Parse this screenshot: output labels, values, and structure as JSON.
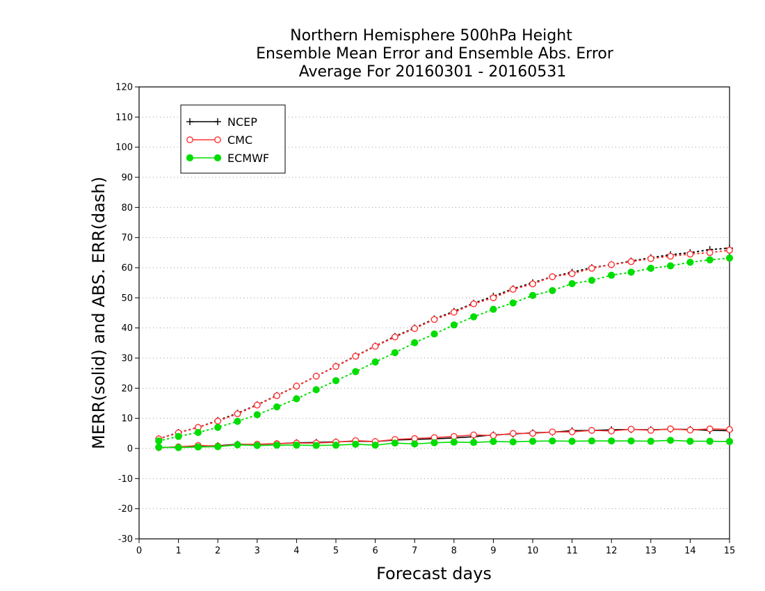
{
  "chart_data": {
    "type": "line",
    "title_lines": [
      "Northern Hemisphere 500hPa Height",
      "Ensemble Mean Error and Ensemble Abs. Error",
      "Average For 20160301 - 20160531"
    ],
    "xlabel": "Forecast days",
    "ylabel": "MERR(solid) and ABS. ERR(dash)",
    "xlim": [
      0,
      15
    ],
    "ylim": [
      -30,
      120
    ],
    "xticks": [
      0,
      1,
      2,
      3,
      4,
      5,
      6,
      7,
      8,
      9,
      10,
      11,
      12,
      13,
      14,
      15
    ],
    "yticks": [
      -30,
      -20,
      -10,
      0,
      10,
      20,
      30,
      40,
      50,
      60,
      70,
      80,
      90,
      100,
      110,
      120
    ],
    "grid": "horizontal dotted",
    "legend_position": "top-left",
    "x": [
      0.5,
      1,
      1.5,
      2,
      2.5,
      3,
      3.5,
      4,
      4.5,
      5,
      5.5,
      6,
      6.5,
      7,
      7.5,
      8,
      8.5,
      9,
      9.5,
      10,
      10.5,
      11,
      11.5,
      12,
      12.5,
      13,
      13.5,
      14,
      14.5,
      15
    ],
    "series": [
      {
        "name": "NCEP",
        "color": "#000000",
        "marker": "plus",
        "merr": [
          0.3,
          0.5,
          0.8,
          0.9,
          1.4,
          1.3,
          1.6,
          1.9,
          2.0,
          2.2,
          2.4,
          2.3,
          2.8,
          3.0,
          3.2,
          3.5,
          3.9,
          4.5,
          4.8,
          5.2,
          5.4,
          5.9,
          6.0,
          6.2,
          6.3,
          6.2,
          6.4,
          6.3,
          6.0,
          5.9
        ],
        "abs_err": [
          3.2,
          5.3,
          7.0,
          9.3,
          11.7,
          14.5,
          17.6,
          20.7,
          24.0,
          27.3,
          30.7,
          34.0,
          37.2,
          40.0,
          43.0,
          45.5,
          48.2,
          50.5,
          53.0,
          55.0,
          57.0,
          58.5,
          60.0,
          61.0,
          62.2,
          63.3,
          64.3,
          65.0,
          66.0,
          66.5
        ]
      },
      {
        "name": "CMC",
        "color": "#ff3333",
        "marker": "open-circle",
        "merr": [
          0.3,
          0.5,
          1.0,
          0.8,
          1.3,
          1.4,
          1.6,
          1.8,
          1.8,
          2.1,
          2.6,
          2.3,
          3.0,
          3.3,
          3.6,
          4.0,
          4.5,
          4.3,
          5.0,
          5.0,
          5.5,
          5.5,
          6.0,
          5.8,
          6.4,
          6.0,
          6.5,
          6.1,
          6.5,
          6.3
        ],
        "abs_err": [
          3.2,
          5.2,
          7.0,
          9.1,
          11.5,
          14.4,
          17.5,
          20.7,
          24.0,
          27.2,
          30.6,
          33.9,
          37.0,
          39.8,
          42.8,
          45.2,
          48.0,
          50.0,
          52.8,
          54.6,
          57.0,
          58.0,
          59.8,
          61.0,
          62.0,
          63.0,
          63.8,
          64.5,
          65.0,
          65.8
        ]
      },
      {
        "name": "ECMWF",
        "color": "#00dd00",
        "marker": "filled-circle",
        "merr": [
          0.4,
          0.3,
          0.5,
          0.6,
          1.2,
          1.0,
          1.1,
          1.1,
          1.0,
          1.1,
          1.4,
          1.1,
          1.8,
          1.5,
          1.9,
          2.1,
          2.0,
          2.3,
          2.2,
          2.4,
          2.5,
          2.4,
          2.5,
          2.5,
          2.5,
          2.4,
          2.7,
          2.4,
          2.4,
          2.3
        ],
        "abs_err": [
          2.5,
          4.0,
          5.3,
          7.0,
          9.0,
          11.2,
          13.8,
          16.5,
          19.5,
          22.5,
          25.5,
          28.7,
          31.8,
          35.1,
          38.0,
          41.0,
          43.7,
          46.2,
          48.3,
          50.8,
          52.4,
          54.7,
          55.8,
          57.5,
          58.5,
          59.8,
          60.6,
          61.8,
          62.6,
          63.2
        ]
      }
    ]
  }
}
